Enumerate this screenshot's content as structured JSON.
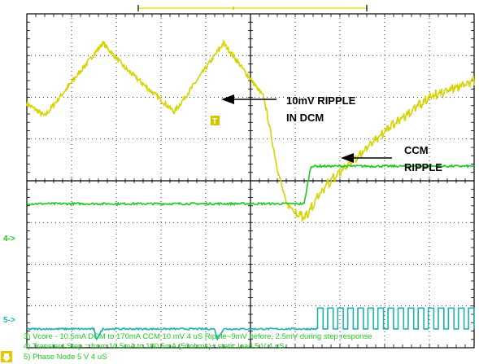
{
  "chart_data": {
    "type": "line",
    "title": "",
    "xlabel": "",
    "ylabel": "",
    "grid": true,
    "divisions": {
      "x": 10,
      "y": 8
    },
    "trigger_marker": "T",
    "series": [
      {
        "name": "Vcore",
        "info": "3) Vcore - 10.5mA DCM to 170mA CCM 10 mV   4 uS Ripple~9mV before, 2.5mV during step response",
        "color": "#d4d400",
        "x": [
          0,
          0.4,
          1.7,
          2.2,
          3.3,
          4.4,
          5.3,
          5.6,
          5.8,
          6.2,
          6.7,
          7.5,
          8.2,
          9,
          10
        ],
        "y": [
          5.85,
          5.55,
          7.3,
          6.7,
          5.65,
          7.3,
          6.0,
          4.3,
          3.45,
          3.1,
          3.9,
          4.7,
          5.35,
          6.0,
          6.4
        ]
      },
      {
        "name": "Transient Step",
        "info": "4) Transient Step = from 10.5mA  to 180.5mA (50ohms)+ static load  5  V   4 uS",
        "color": "#1fc81f",
        "marker": "4->",
        "x": [
          0,
          6.2,
          6.35,
          10
        ],
        "y": [
          3.45,
          3.45,
          4.35,
          4.35
        ]
      },
      {
        "name": "Phase Node",
        "info": "5) Phase Node 5  V  4 uS",
        "color": "#1cb2b2",
        "marker": "5->",
        "x": [
          0,
          1.5,
          1.55,
          1.7,
          1.85,
          4.2,
          4.25,
          4.4,
          4.55,
          6.5,
          10
        ],
        "y": [
          0.45,
          0.45,
          0.2,
          0.45,
          0.45,
          0.45,
          0.2,
          0.45,
          0.45,
          0.45,
          0.45
        ]
      }
    ],
    "annotations": [
      {
        "text": "10mV RIPPLE",
        "text2": "IN DCM"
      },
      {
        "text": "CCM",
        "text2": "RIPPLE"
      }
    ]
  }
}
